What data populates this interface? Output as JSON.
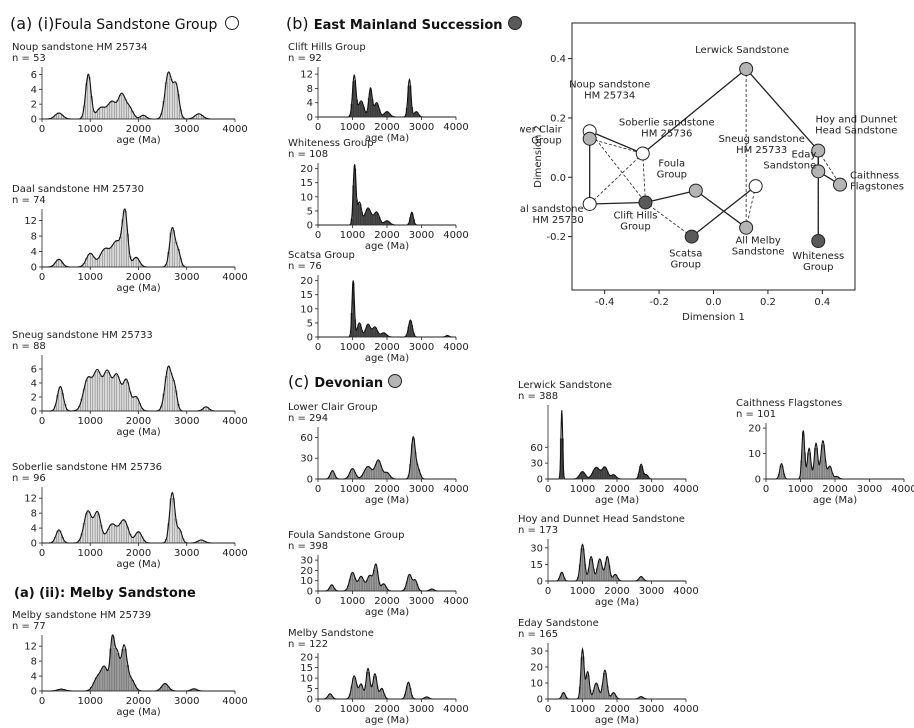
{
  "headings": {
    "a_i_prefix": "(a) (i)",
    "a_i_name": "Foula Sandstone Group",
    "a_ii": "(a) (ii): Melby Sandstone",
    "b_prefix": "(b)",
    "b_name": "East Mainland Succession",
    "c_prefix": "(c)",
    "c_name": "Devonian"
  },
  "legend_symbols": {
    "foula_group_color": "#ffffff",
    "east_mainland_color": "#5a5a5a",
    "devonian_color": "#b4b4b4"
  },
  "colors": {
    "light_fill": "#d9d9d9",
    "dark_fill": "#3d3d3d",
    "mid_fill": "#9a9a9a",
    "curve": "#111111"
  },
  "chart_data": [
    {
      "id": "p_noup",
      "type": "area",
      "title": "Noup sandstone HM 25734",
      "n_label": "n = 53",
      "xlabel": "age (Ma)",
      "xticks": [
        0,
        1000,
        2000,
        3000,
        4000
      ],
      "yticks": [
        0,
        2,
        4,
        6
      ],
      "ylim": [
        0,
        7
      ],
      "fill": "light",
      "peaks": [
        [
          350,
          80,
          0.8
        ],
        [
          960,
          55,
          6.0
        ],
        [
          1220,
          90,
          1.5
        ],
        [
          1450,
          90,
          2.3
        ],
        [
          1650,
          70,
          3.0
        ],
        [
          1800,
          80,
          1.6
        ],
        [
          2100,
          60,
          0.5
        ],
        [
          2620,
          70,
          6.2
        ],
        [
          2780,
          60,
          4.4
        ],
        [
          3250,
          80,
          0.7
        ]
      ]
    },
    {
      "id": "p_daal",
      "type": "area",
      "title": "Daal sandstone HM 25730",
      "n_label": "n = 74",
      "xlabel": "age (Ma)",
      "xticks": [
        0,
        1000,
        2000,
        3000,
        4000
      ],
      "yticks": [
        0,
        4,
        8,
        12
      ],
      "ylim": [
        0,
        15
      ],
      "fill": "light",
      "peaks": [
        [
          350,
          70,
          2.0
        ],
        [
          1000,
          80,
          3.5
        ],
        [
          1300,
          100,
          4.5
        ],
        [
          1550,
          100,
          6.5
        ],
        [
          1720,
          55,
          13.5
        ],
        [
          1950,
          70,
          2.5
        ],
        [
          2700,
          55,
          10.0
        ],
        [
          2820,
          50,
          4.0
        ]
      ]
    },
    {
      "id": "p_sneug",
      "type": "area",
      "title": "Sneug sandstone HM 25733",
      "n_label": "n = 88",
      "xlabel": "age (Ma)",
      "xticks": [
        0,
        1000,
        2000,
        3000,
        4000
      ],
      "yticks": [
        0,
        2,
        4,
        6
      ],
      "ylim": [
        0,
        8
      ],
      "fill": "light",
      "peaks": [
        [
          380,
          60,
          3.5
        ],
        [
          950,
          90,
          4.6
        ],
        [
          1150,
          80,
          5.3
        ],
        [
          1350,
          80,
          5.4
        ],
        [
          1550,
          80,
          5.0
        ],
        [
          1750,
          70,
          4.3
        ],
        [
          1950,
          70,
          2.0
        ],
        [
          2620,
          70,
          6.3
        ],
        [
          2750,
          50,
          2.8
        ],
        [
          3400,
          60,
          0.6
        ]
      ]
    },
    {
      "id": "p_soberlie",
      "type": "area",
      "title": "Soberlie sandstone HM 25736",
      "n_label": "n = 96",
      "xlabel": "age (Ma)",
      "xticks": [
        0,
        1000,
        2000,
        3000,
        4000
      ],
      "yticks": [
        0,
        4,
        8,
        12
      ],
      "ylim": [
        0,
        15
      ],
      "fill": "light",
      "peaks": [
        [
          350,
          60,
          3.5
        ],
        [
          950,
          80,
          8.5
        ],
        [
          1150,
          70,
          8.0
        ],
        [
          1450,
          100,
          5.0
        ],
        [
          1700,
          90,
          6.0
        ],
        [
          2000,
          70,
          3.0
        ],
        [
          2700,
          55,
          13.5
        ],
        [
          2850,
          50,
          3.5
        ],
        [
          3300,
          70,
          0.8
        ]
      ]
    },
    {
      "id": "p_melby_hm",
      "type": "area",
      "title": "Melby sandstone HM 25739",
      "n_label": "n = 77",
      "xlabel": "age (Ma)",
      "xticks": [
        0,
        1000,
        2000,
        3000,
        4000
      ],
      "yticks": [
        0,
        4,
        8,
        12
      ],
      "ylim": [
        0,
        15
      ],
      "fill": "mid",
      "peaks": [
        [
          400,
          80,
          0.5
        ],
        [
          1150,
          80,
          3.5
        ],
        [
          1300,
          70,
          6.0
        ],
        [
          1460,
          45,
          14.0
        ],
        [
          1560,
          45,
          9.0
        ],
        [
          1700,
          60,
          12.0
        ],
        [
          1850,
          70,
          3.0
        ],
        [
          2550,
          70,
          2.0
        ],
        [
          3150,
          60,
          0.6
        ]
      ]
    },
    {
      "id": "p_clift",
      "type": "area",
      "title": "Clift Hills Group",
      "n_label": "n = 92",
      "xlabel": "age (Ma)",
      "xticks": [
        0,
        1000,
        2000,
        3000,
        4000
      ],
      "yticks": [
        0,
        4,
        8,
        12
      ],
      "ylim": [
        0,
        14
      ],
      "fill": "dark",
      "peaks": [
        [
          1050,
          50,
          11.5
        ],
        [
          1250,
          80,
          4.5
        ],
        [
          1520,
          50,
          8.0
        ],
        [
          1700,
          70,
          4.0
        ],
        [
          2000,
          80,
          1.5
        ],
        [
          2650,
          45,
          10.5
        ],
        [
          2850,
          60,
          1.5
        ]
      ]
    },
    {
      "id": "p_whiteness",
      "type": "area",
      "title": "Whiteness Group",
      "n_label": "n = 108",
      "xlabel": "age (Ma)",
      "xticks": [
        0,
        1000,
        2000,
        3000,
        4000
      ],
      "yticks": [
        0,
        5,
        10,
        15,
        20
      ],
      "ylim": [
        0,
        22
      ],
      "fill": "dark",
      "peaks": [
        [
          1060,
          40,
          21.0
        ],
        [
          1200,
          60,
          8.0
        ],
        [
          1450,
          90,
          6.0
        ],
        [
          1700,
          80,
          4.5
        ],
        [
          2000,
          80,
          1.5
        ],
        [
          2720,
          45,
          4.5
        ]
      ]
    },
    {
      "id": "p_scatsa",
      "type": "area",
      "title": "Scatsa Group",
      "n_label": "n = 76",
      "xlabel": "age (Ma)",
      "xticks": [
        0,
        1000,
        2000,
        3000,
        4000
      ],
      "yticks": [
        0,
        5,
        10,
        15,
        20
      ],
      "ylim": [
        0,
        22
      ],
      "fill": "dark",
      "peaks": [
        [
          1020,
          35,
          20.0
        ],
        [
          1200,
          60,
          5.0
        ],
        [
          1450,
          70,
          4.5
        ],
        [
          1650,
          70,
          3.5
        ],
        [
          1900,
          80,
          1.5
        ],
        [
          2680,
          55,
          6.0
        ],
        [
          3750,
          50,
          0.5
        ]
      ]
    },
    {
      "id": "p_lowerclair",
      "type": "area",
      "title": "Lower Clair Group",
      "n_label": "n = 294",
      "xlabel": "age (Ma)",
      "xticks": [
        0,
        1000,
        2000,
        3000,
        4000
      ],
      "yticks": [
        0,
        30,
        60
      ],
      "ylim": [
        0,
        75
      ],
      "fill": "mid",
      "peaks": [
        [
          420,
          60,
          12.0
        ],
        [
          1000,
          80,
          15.0
        ],
        [
          1450,
          110,
          18.0
        ],
        [
          1750,
          90,
          27.0
        ],
        [
          2000,
          80,
          9.0
        ],
        [
          2760,
          60,
          60.0
        ],
        [
          2900,
          60,
          14.0
        ]
      ]
    },
    {
      "id": "p_foulagroup",
      "type": "area",
      "title": "Foula Sandstone Group",
      "n_label": "n = 398",
      "xlabel": "age (Ma)",
      "xticks": [
        0,
        1000,
        2000,
        3000,
        4000
      ],
      "yticks": [
        0,
        10,
        20,
        30
      ],
      "ylim": [
        0,
        35
      ],
      "fill": "mid",
      "peaks": [
        [
          400,
          60,
          6.0
        ],
        [
          1000,
          80,
          18.0
        ],
        [
          1250,
          80,
          14.0
        ],
        [
          1500,
          80,
          15.0
        ],
        [
          1680,
          60,
          25.0
        ],
        [
          1900,
          70,
          7.0
        ],
        [
          2650,
          70,
          16.0
        ],
        [
          2820,
          60,
          10.0
        ],
        [
          3300,
          60,
          2.0
        ]
      ]
    },
    {
      "id": "p_melby",
      "type": "area",
      "title": "Melby Sandstone",
      "n_label": "n = 122",
      "xlabel": "age (Ma)",
      "xticks": [
        0,
        1000,
        2000,
        3000,
        4000
      ],
      "yticks": [
        0,
        5,
        10,
        15,
        20
      ],
      "ylim": [
        0,
        22
      ],
      "fill": "mid",
      "peaks": [
        [
          350,
          60,
          2.5
        ],
        [
          1050,
          70,
          11.0
        ],
        [
          1250,
          60,
          7.0
        ],
        [
          1450,
          55,
          14.5
        ],
        [
          1650,
          60,
          12.0
        ],
        [
          1850,
          60,
          5.0
        ],
        [
          2620,
          60,
          8.0
        ],
        [
          3150,
          60,
          1.0
        ]
      ]
    },
    {
      "id": "p_lerwick",
      "type": "area",
      "title": "Lerwick Sandstone",
      "n_label": "n = 388",
      "xlabel": "age (Ma)",
      "xticks": [
        0,
        1000,
        2000,
        3000,
        4000
      ],
      "yticks": [
        0,
        30,
        60
      ],
      "ylim": [
        0,
        140
      ],
      "fill": "dark",
      "peaks": [
        [
          400,
          25,
          130.0
        ],
        [
          1000,
          80,
          14.0
        ],
        [
          1400,
          100,
          22.0
        ],
        [
          1650,
          80,
          22.0
        ],
        [
          1900,
          70,
          8.0
        ],
        [
          2700,
          50,
          28.0
        ],
        [
          2850,
          50,
          8.0
        ]
      ]
    },
    {
      "id": "p_hoy",
      "type": "area",
      "title": "Hoy and Dunnet Head Sandstone",
      "n_label": "n = 173",
      "xlabel": "age (Ma)",
      "xticks": [
        0,
        1000,
        2000,
        3000,
        4000
      ],
      "yticks": [
        0,
        15,
        30
      ],
      "ylim": [
        0,
        38
      ],
      "fill": "mid",
      "peaks": [
        [
          400,
          50,
          8.0
        ],
        [
          1000,
          60,
          33.0
        ],
        [
          1250,
          60,
          22.0
        ],
        [
          1500,
          70,
          20.0
        ],
        [
          1720,
          60,
          22.0
        ],
        [
          1950,
          60,
          6.0
        ],
        [
          2700,
          60,
          4.0
        ]
      ]
    },
    {
      "id": "p_eday",
      "type": "area",
      "title": "Eday Sandstone",
      "n_label": "n = 165",
      "xlabel": "age (Ma)",
      "xticks": [
        0,
        1000,
        2000,
        3000,
        4000
      ],
      "yticks": [
        0,
        10,
        20,
        30
      ],
      "ylim": [
        0,
        35
      ],
      "fill": "mid",
      "peaks": [
        [
          450,
          50,
          4.0
        ],
        [
          1000,
          45,
          31.0
        ],
        [
          1150,
          50,
          17.0
        ],
        [
          1400,
          70,
          10.0
        ],
        [
          1650,
          60,
          18.0
        ],
        [
          1900,
          60,
          4.0
        ],
        [
          2700,
          60,
          1.5
        ]
      ]
    },
    {
      "id": "p_caithness",
      "type": "area",
      "title": "Caithness Flagstones",
      "n_label": "n = 101",
      "xlabel": "age (Ma)",
      "xticks": [
        0,
        1000,
        2000,
        3000,
        4000
      ],
      "yticks": [
        0,
        10,
        20
      ],
      "ylim": [
        0,
        22
      ],
      "fill": "mid",
      "peaks": [
        [
          450,
          50,
          6.0
        ],
        [
          1080,
          40,
          19.0
        ],
        [
          1250,
          50,
          12.0
        ],
        [
          1450,
          50,
          14.0
        ],
        [
          1650,
          60,
          15.0
        ],
        [
          1850,
          60,
          5.0
        ],
        [
          2050,
          60,
          1.0
        ]
      ]
    },
    {
      "id": "p_mds",
      "type": "scatter",
      "xlabel": "Dimension 1",
      "ylabel": "Dimension 2",
      "xticks": [
        -0.4,
        -0.2,
        0.0,
        0.2,
        0.4
      ],
      "yticks": [
        -0.2,
        0.0,
        0.2,
        0.4
      ],
      "xlim": [
        -0.52,
        0.52
      ],
      "ylim": [
        -0.38,
        0.52
      ],
      "points": [
        {
          "key": "noup",
          "label": "Noup sandstone\nHM 25734",
          "x": -0.455,
          "y": 0.155,
          "group": "foula"
        },
        {
          "key": "lowerclair",
          "label": "Lower Clair\nGroup",
          "x": -0.455,
          "y": 0.13,
          "group": "devonian"
        },
        {
          "key": "soberlie",
          "label": "Soberlie sandstone\nHM 25736",
          "x": -0.26,
          "y": 0.08,
          "group": "foula"
        },
        {
          "key": "daal",
          "label": "Daal sandstone\nHM 25730",
          "x": -0.455,
          "y": -0.09,
          "group": "foula"
        },
        {
          "key": "clift",
          "label": "Clift Hills\nGroup",
          "x": -0.25,
          "y": -0.085,
          "group": "east"
        },
        {
          "key": "foula",
          "label": "Foula\nGroup",
          "x": -0.065,
          "y": -0.045,
          "group": "devonian"
        },
        {
          "key": "scatsa",
          "label": "Scatsa\nGroup",
          "x": -0.08,
          "y": -0.2,
          "group": "east"
        },
        {
          "key": "sneug",
          "label": "Sneug sandstone\nHM 25733",
          "x": 0.155,
          "y": -0.03,
          "group": "foula"
        },
        {
          "key": "allmelby",
          "label": "All Melby\nSandstone",
          "x": 0.12,
          "y": -0.17,
          "group": "devonian"
        },
        {
          "key": "lerwick",
          "label": "Lerwick Sandstone",
          "x": 0.12,
          "y": 0.365,
          "group": "devonian"
        },
        {
          "key": "hoy",
          "label": "Hoy and Dunnet\nHead Sandstone",
          "x": 0.385,
          "y": 0.09,
          "group": "devonian"
        },
        {
          "key": "eday",
          "label": "Eday\nSandstone",
          "x": 0.385,
          "y": 0.02,
          "group": "devonian"
        },
        {
          "key": "caithness",
          "label": "Caithness\nFlagstones",
          "x": 0.465,
          "y": -0.025,
          "group": "devonian"
        },
        {
          "key": "whiteness",
          "label": "Whiteness\nGroup",
          "x": 0.385,
          "y": -0.215,
          "group": "east"
        }
      ],
      "solid_links": [
        [
          "noup",
          "soberlie"
        ],
        [
          "daal",
          "lowerclair"
        ],
        [
          "daal",
          "clift"
        ],
        [
          "clift",
          "foula"
        ],
        [
          "foula",
          "allmelby"
        ],
        [
          "scatsa",
          "sneug"
        ],
        [
          "lerwick",
          "soberlie"
        ],
        [
          "lerwick",
          "hoy"
        ],
        [
          "hoy",
          "eday"
        ],
        [
          "eday",
          "caithness"
        ],
        [
          "whiteness",
          "hoy"
        ]
      ],
      "dashed_links": [
        [
          "noup",
          "clift"
        ],
        [
          "lowerclair",
          "soberlie"
        ],
        [
          "soberlie",
          "daal"
        ],
        [
          "soberlie",
          "clift"
        ],
        [
          "sneug",
          "allmelby"
        ],
        [
          "scatsa",
          "clift"
        ],
        [
          "lerwick",
          "allmelby"
        ],
        [
          "hoy",
          "caithness"
        ],
        [
          "eday",
          "whiteness"
        ]
      ]
    }
  ]
}
